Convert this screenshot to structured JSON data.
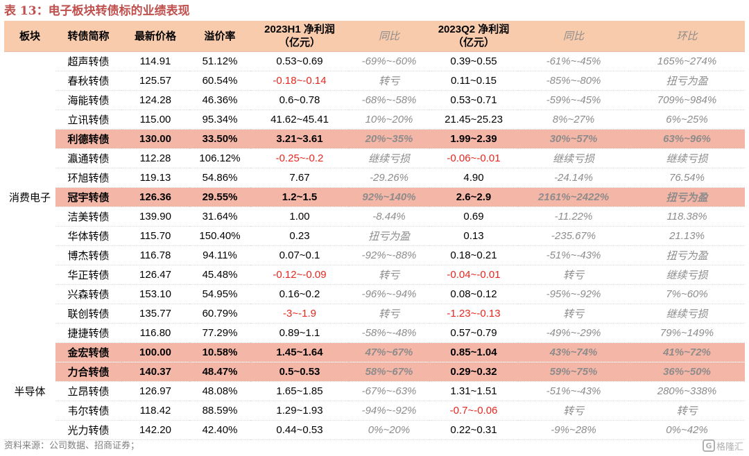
{
  "title": "表 13：电子板块转债标的业绩表现",
  "headers": {
    "sector": "板块",
    "name": "转债简称",
    "price": "最新价格",
    "premium": "溢价率",
    "h1_profit_line1": "2023H1 净利润",
    "h1_profit_line2": "（亿元）",
    "h1_yoy": "同比",
    "q2_profit_line1": "2023Q2 净利润",
    "q2_profit_line2": "（亿元）",
    "q2_yoy": "同比",
    "q2_qoq": "环比"
  },
  "sectors": [
    "消费电子",
    "半导体"
  ],
  "rows": [
    {
      "name": "超声转债",
      "price": "114.91",
      "premium": "51.12%",
      "h1_profit": "0.53~0.69",
      "h1_yoy": "-69%~-60%",
      "q2_profit": "0.39~0.55",
      "q2_yoy": "-61%~-45%",
      "q2_qoq": "165%~274%"
    },
    {
      "name": "春秋转债",
      "price": "125.57",
      "premium": "60.54%",
      "h1_profit": "-0.18~-0.14",
      "h1_yoy": "转亏",
      "q2_profit": "0.11~0.15",
      "q2_yoy": "-85%~-80%",
      "q2_qoq": "扭亏为盈"
    },
    {
      "name": "海能转债",
      "price": "124.28",
      "premium": "46.36%",
      "h1_profit": "0.6~0.78",
      "h1_yoy": "-68%~-58%",
      "q2_profit": "0.53~0.71",
      "q2_yoy": "-59%~-45%",
      "q2_qoq": "709%~984%"
    },
    {
      "name": "立讯转债",
      "price": "115.00",
      "premium": "95.34%",
      "h1_profit": "41.62~45.41",
      "h1_yoy": "10%~20%",
      "q2_profit": "21.45~25.23",
      "q2_yoy": "8%~27%",
      "q2_qoq": "6%~25%"
    },
    {
      "name": "利德转债",
      "price": "130.00",
      "premium": "33.50%",
      "h1_profit": "3.21~3.61",
      "h1_yoy": "20%~35%",
      "q2_profit": "1.99~2.39",
      "q2_yoy": "30%~57%",
      "q2_qoq": "63%~96%"
    },
    {
      "name": "瀛通转债",
      "price": "112.28",
      "premium": "106.12%",
      "h1_profit": "-0.25~-0.2",
      "h1_yoy": "继续亏损",
      "q2_profit": "-0.06~-0.01",
      "q2_yoy": "继续亏损",
      "q2_qoq": "继续亏损"
    },
    {
      "name": "环旭转债",
      "price": "119.13",
      "premium": "54.86%",
      "h1_profit": "7.67",
      "h1_yoy": "-29.26%",
      "q2_profit": "4.90",
      "q2_yoy": "-24.14%",
      "q2_qoq": "76.54%"
    },
    {
      "name": "冠宇转债",
      "price": "126.36",
      "premium": "29.55%",
      "h1_profit": "1.2~1.5",
      "h1_yoy": "92%~140%",
      "q2_profit": "2.6~2.9",
      "q2_yoy": "2161%~2422%",
      "q2_qoq": "扭亏为盈"
    },
    {
      "name": "洁美转债",
      "price": "139.90",
      "premium": "31.64%",
      "h1_profit": "1.00",
      "h1_yoy": "-8.44%",
      "q2_profit": "0.69",
      "q2_yoy": "-11.22%",
      "q2_qoq": "118.38%"
    },
    {
      "name": "华体转债",
      "price": "115.70",
      "premium": "150.40%",
      "h1_profit": "0.23",
      "h1_yoy": "扭亏为盈",
      "q2_profit": "0.13",
      "q2_yoy": "-235.67%",
      "q2_qoq": "21.13%"
    },
    {
      "name": "博杰转债",
      "price": "116.78",
      "premium": "94.11%",
      "h1_profit": "0.07~0.1",
      "h1_yoy": "-92%~-88%",
      "q2_profit": "0.18~0.21",
      "q2_yoy": "-51%~-43%",
      "q2_qoq": "扭亏为盈"
    },
    {
      "name": "华正转债",
      "price": "126.47",
      "premium": "45.48%",
      "h1_profit": "-0.12~-0.09",
      "h1_yoy": "转亏",
      "q2_profit": "-0.04~-0.01",
      "q2_yoy": "转亏",
      "q2_qoq": "继续亏损"
    },
    {
      "name": "兴森转债",
      "price": "153.10",
      "premium": "54.95%",
      "h1_profit": "0.16~0.2",
      "h1_yoy": "-96%~-94%",
      "q2_profit": "0.08~0.12",
      "q2_yoy": "-95%~-92%",
      "q2_qoq": "7%~60%"
    },
    {
      "name": "联创转债",
      "price": "135.77",
      "premium": "60.79%",
      "h1_profit": "-3~-1.9",
      "h1_yoy": "转亏",
      "q2_profit": "-1.23~-0.13",
      "q2_yoy": "转亏",
      "q2_qoq": "继续亏损"
    },
    {
      "name": "捷捷转债",
      "price": "116.80",
      "premium": "77.29%",
      "h1_profit": "0.89~1.1",
      "h1_yoy": "-58%~-48%",
      "q2_profit": "0.57~0.79",
      "q2_yoy": "-49%~-29%",
      "q2_qoq": "79%~149%"
    },
    {
      "name": "金宏转债",
      "price": "100.00",
      "premium": "10.58%",
      "h1_profit": "1.45~1.64",
      "h1_yoy": "47%~67%",
      "q2_profit": "0.85~1.04",
      "q2_yoy": "43%~74%",
      "q2_qoq": "41%~72%"
    },
    {
      "name": "力合转债",
      "price": "140.37",
      "premium": "48.47%",
      "h1_profit": "0.5~0.53",
      "h1_yoy": "58%~67%",
      "q2_profit": "0.29~0.32",
      "q2_yoy": "59%~75%",
      "q2_qoq": "36%~50%"
    },
    {
      "name": "立昂转债",
      "price": "126.97",
      "premium": "48.08%",
      "h1_profit": "1.65~1.85",
      "h1_yoy": "-67%~-63%",
      "q2_profit": "1.31~1.51",
      "q2_yoy": "-51%~-43%",
      "q2_qoq": "280%~338%"
    },
    {
      "name": "韦尔转债",
      "price": "118.42",
      "premium": "88.59%",
      "h1_profit": "1.29~1.93",
      "h1_yoy": "-94%~-92%",
      "q2_profit": "-0.7~-0.06",
      "q2_yoy": "转亏",
      "q2_qoq": "转亏"
    },
    {
      "name": "光力转债",
      "price": "142.20",
      "premium": "42.40%",
      "h1_profit": "0.44~0.53",
      "h1_yoy": "0%~20%",
      "q2_profit": "0.22~0.31",
      "q2_yoy": "-9%~28%",
      "q2_qoq": "0%~42%"
    }
  ],
  "source": "资料来源：公司数据、招商证券；",
  "watermark": {
    "icon": "gelonghui-logo-icon",
    "text": "格隆汇"
  },
  "colors": {
    "header_bg": "#f8cbad",
    "highlight_bg": "#f4b6a6",
    "negative_text": "#e8261d",
    "yoy_text": "#8c8c8c",
    "title_text": "#c0504d"
  }
}
